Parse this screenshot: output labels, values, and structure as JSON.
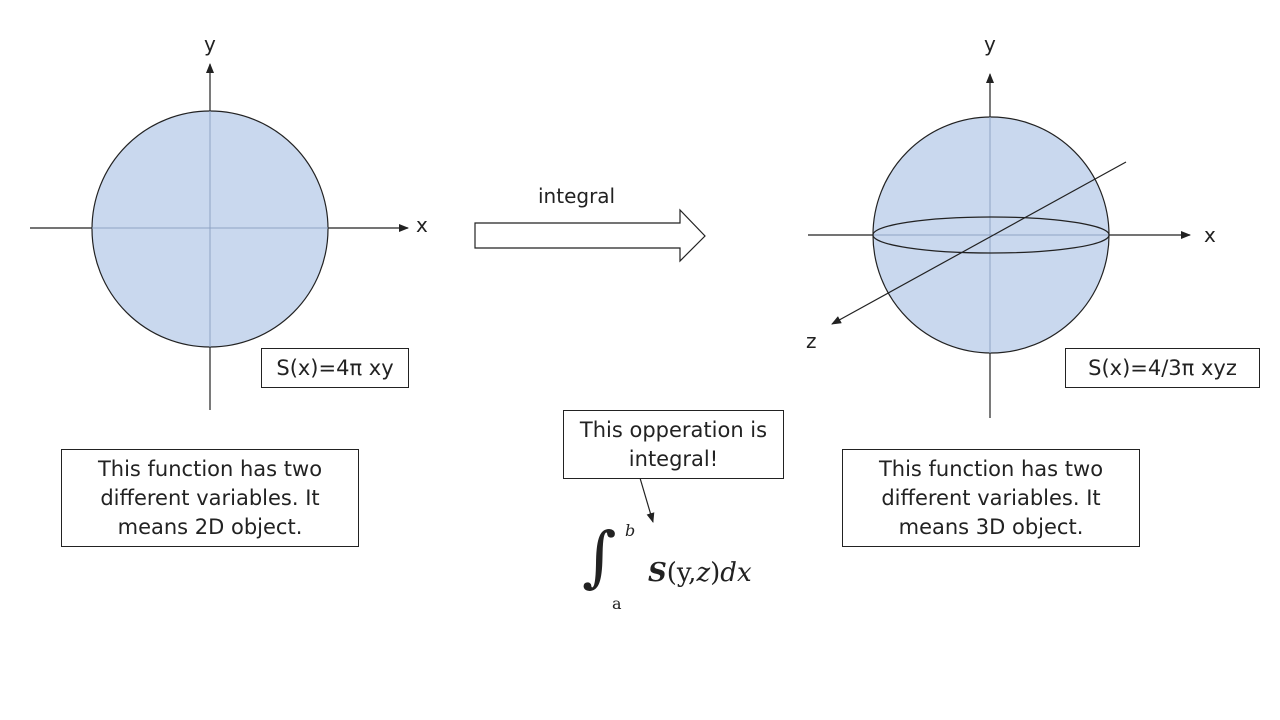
{
  "left_figure": {
    "axis_x_label": "x",
    "axis_y_label": "y",
    "formula": "S(x)=4π xy",
    "description": "This function has two\ndifferent variables. It\nmeans 2D object."
  },
  "right_figure": {
    "axis_x_label": "x",
    "axis_y_label": "y",
    "axis_z_label": "z",
    "formula": "S(x)=4/3π xyz",
    "description": "This function has two\ndifferent variables. It\nmeans 3D object."
  },
  "arrow": {
    "label": "integral"
  },
  "callout": {
    "text": "This opperation is\nintegral!"
  },
  "integral_expression": {
    "upper_bound": "b",
    "lower_bound": "a",
    "function_name": "S",
    "arguments": "(y,",
    "argument_z": "z",
    "closing": ")",
    "differential": "dx"
  },
  "colors": {
    "fill": "#c9d8ee",
    "line": "#222222",
    "inner_axis": "#8ea3c4"
  }
}
